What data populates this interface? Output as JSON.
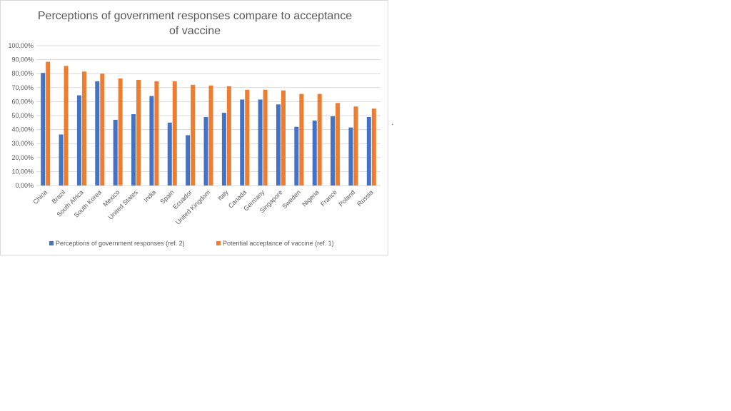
{
  "chart_data": {
    "type": "bar",
    "title_lines": [
      "Perceptions of government responses compare to acceptance",
      "of vaccine"
    ],
    "categories": [
      "China",
      "Brazil",
      "South Africa",
      "South Korea",
      "Mexico",
      "United States",
      "India",
      "Spain",
      "Ecuador",
      "United Kingdom",
      "Italy",
      "Canada",
      "Germany",
      "Singapore",
      "Sweden",
      "Nigeria",
      "France",
      "Poland",
      "Russia"
    ],
    "series": [
      {
        "name": "Perceptions of government responses (ref. 2)",
        "color": "#4472c4",
        "values": [
          80.5,
          36.5,
          64.5,
          74.5,
          47.0,
          51.0,
          64.0,
          45.0,
          36.0,
          49.0,
          52.0,
          61.5,
          61.5,
          58.0,
          42.0,
          46.5,
          49.5,
          41.5,
          49.0
        ]
      },
      {
        "name": "Potential acceptance of vaccine (ref. 1)",
        "color": "#ed7d31",
        "values": [
          88.5,
          85.5,
          81.5,
          80.0,
          76.5,
          75.5,
          74.5,
          74.5,
          72.0,
          71.5,
          71.0,
          68.5,
          68.5,
          68.0,
          65.5,
          65.5,
          59.0,
          56.5,
          55.0
        ]
      }
    ],
    "yticks": [
      "0,00%",
      "10,00%",
      "20,00%",
      "30,00%",
      "40,00%",
      "50,00%",
      "60,00%",
      "70,00%",
      "80,00%",
      "90,00%",
      "100,00%"
    ],
    "ylim": [
      0,
      100
    ],
    "grid": true,
    "legend_position": "bottom"
  },
  "stray_mark": "."
}
